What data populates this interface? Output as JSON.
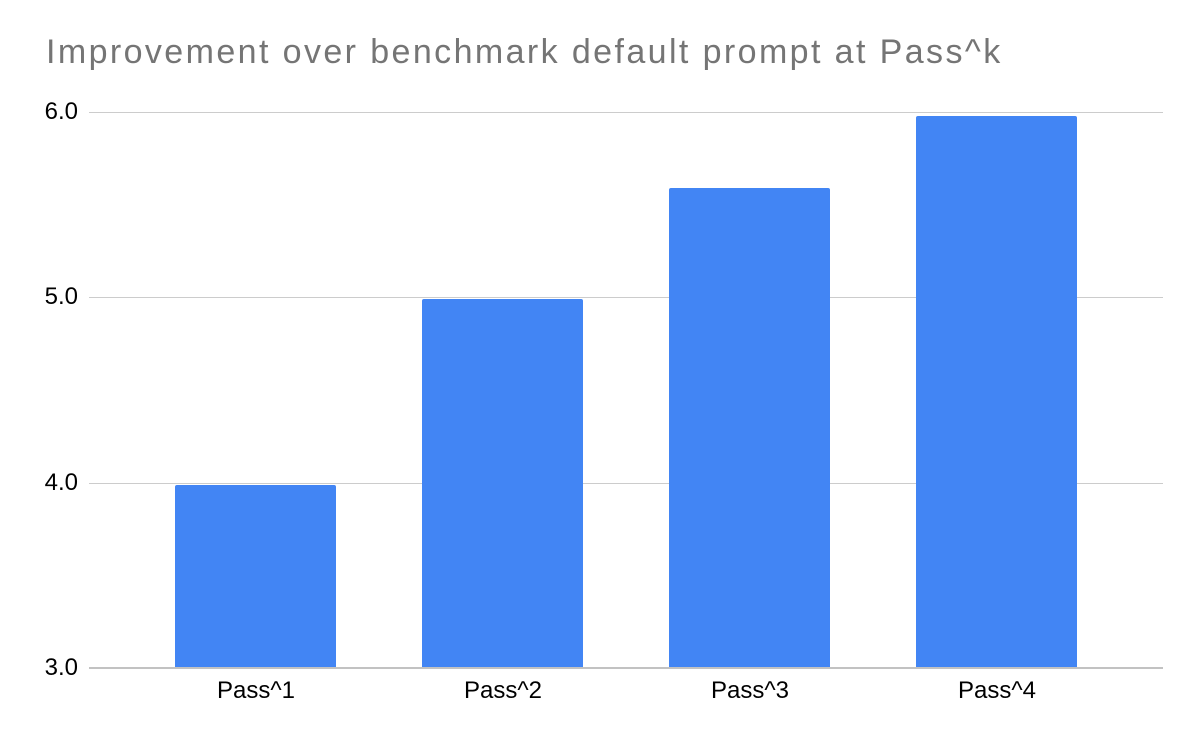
{
  "chart_data": {
    "type": "bar",
    "title": "Improvement over benchmark default prompt at Pass^k",
    "categories": [
      "Pass^1",
      "Pass^2",
      "Pass^3",
      "Pass^4"
    ],
    "values": [
      3.99,
      4.99,
      5.59,
      5.98
    ],
    "xlabel": "",
    "ylabel": "",
    "ylim": [
      3.0,
      6.0
    ],
    "yticks": [
      3.0,
      4.0,
      5.0,
      6.0
    ],
    "ytick_labels": [
      "3.0",
      "4.0",
      "5.0",
      "6.0"
    ],
    "grid": true,
    "legend": false,
    "colors": {
      "bar": "#4285F4",
      "title_text": "#757575",
      "tick_text": "#000000",
      "gridline": "#cccccc",
      "axis_line": "#c2c2c2",
      "background": "#ffffff"
    }
  }
}
